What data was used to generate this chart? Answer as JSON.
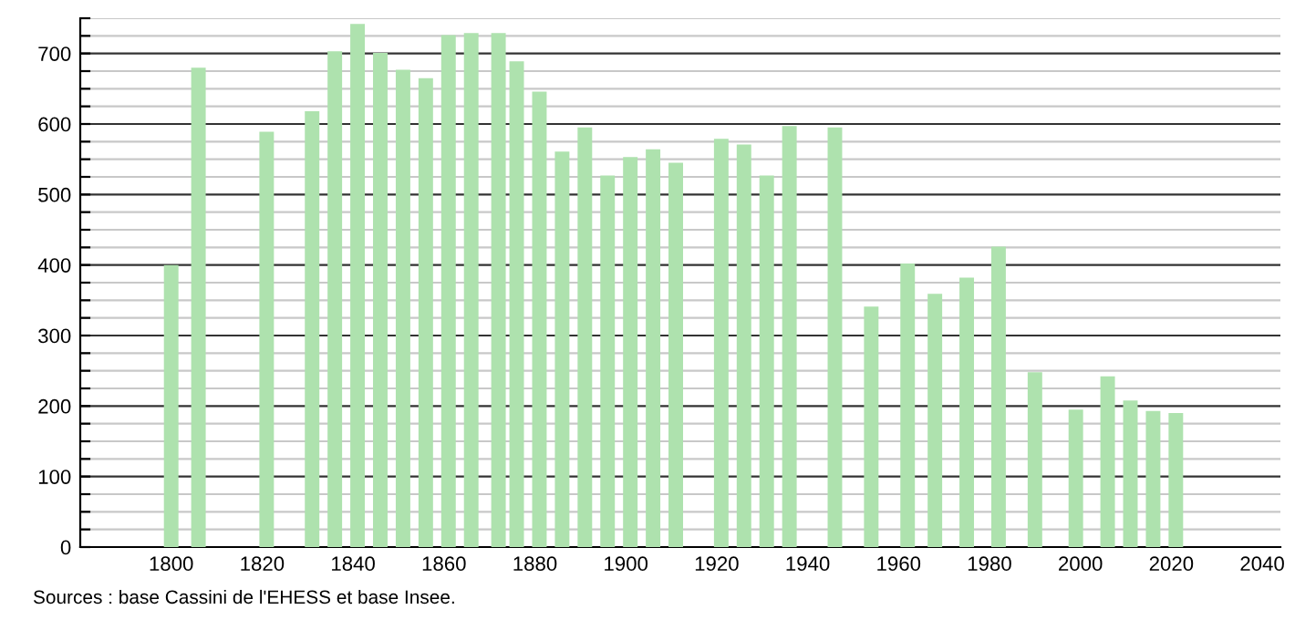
{
  "chart_data": {
    "type": "bar",
    "x": [
      1800,
      1806,
      1821,
      1831,
      1836,
      1841,
      1846,
      1851,
      1856,
      1861,
      1866,
      1872,
      1876,
      1881,
      1886,
      1891,
      1896,
      1901,
      1906,
      1911,
      1921,
      1926,
      1931,
      1936,
      1946,
      1954,
      1962,
      1968,
      1975,
      1982,
      1990,
      1999,
      2006,
      2011,
      2016,
      2021
    ],
    "values": [
      400,
      680,
      589,
      618,
      703,
      742,
      701,
      677,
      665,
      726,
      729,
      729,
      689,
      646,
      561,
      595,
      527,
      553,
      564,
      545,
      579,
      571,
      527,
      597,
      595,
      341,
      402,
      359,
      382,
      426,
      248,
      195,
      242,
      208,
      193,
      190
    ],
    "color": "#aee2ae",
    "xlim": [
      1780,
      2044
    ],
    "xticks": [
      1800,
      1820,
      1840,
      1860,
      1880,
      1900,
      1920,
      1940,
      1960,
      1980,
      2000,
      2020,
      2040
    ],
    "ylim": [
      0,
      750
    ],
    "yticks": [
      0,
      {
        "value": 25,
        "label": null
      },
      {
        "value": 50,
        "label": null
      },
      {
        "value": 75,
        "label": null
      },
      100,
      {
        "value": 125,
        "label": null
      },
      {
        "value": 150,
        "label": null
      },
      {
        "value": 175,
        "label": null
      },
      200,
      {
        "value": 225,
        "label": null
      },
      {
        "value": 250,
        "label": null
      },
      {
        "value": 275,
        "label": null
      },
      300,
      {
        "value": 325,
        "label": null
      },
      {
        "value": 350,
        "label": null
      },
      {
        "value": 375,
        "label": null
      },
      400,
      {
        "value": 425,
        "label": null
      },
      {
        "value": 450,
        "label": null
      },
      {
        "value": 475,
        "label": null
      },
      500,
      {
        "value": 525,
        "label": null
      },
      {
        "value": 550,
        "label": null
      },
      {
        "value": 575,
        "label": null
      },
      600,
      {
        "value": 625,
        "label": null
      },
      {
        "value": 650,
        "label": null
      },
      {
        "value": 675,
        "label": null
      },
      700,
      {
        "value": 725,
        "label": null
      },
      {
        "value": 750,
        "label": null
      }
    ],
    "grid": "y",
    "legend": false,
    "annotations": [
      "Sources : base Cassini de l'EHESS et base Insee."
    ]
  }
}
